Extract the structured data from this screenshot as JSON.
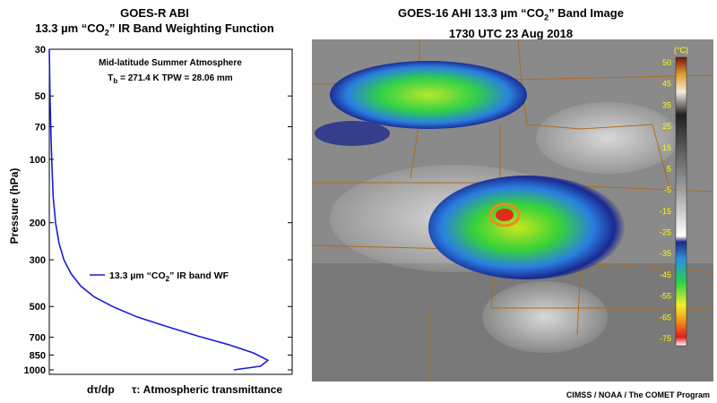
{
  "left_panel": {
    "title_line1": "GOES-R ABI",
    "title_line2_pre": "13.3 µm “CO",
    "title_line2_sub": "2",
    "title_line2_post": "” IR Band Weighting Function",
    "annotation_line1": "Mid-latitude Summer Atmosphere",
    "annotation_tb_label": "T",
    "annotation_tb_sub": "b",
    "annotation_tb_rest": " = 271.4 K   TPW = 28.06 mm",
    "legend_pre": "13.3 µm “CO",
    "legend_sub": "2",
    "legend_post": "” IR band WF",
    "xlabel_left": "dτ/dp",
    "xlabel_right": "τ: Atmospheric transmittance"
  },
  "right_panel": {
    "title_line1_pre": "GOES-16 AHI 13.3 µm “CO",
    "title_line1_sub": "2",
    "title_line1_post": "” Band Image",
    "title_line2": "1730 UTC  23 Aug 2018",
    "colorbar_unit": "(°C)",
    "colorbar_ticks": [
      "50",
      "45",
      "35",
      "25",
      "15",
      "5",
      "-5",
      "-15",
      "-25",
      "-35",
      "-45",
      "-55",
      "-65",
      "-75"
    ],
    "credit": "CIMSS / NOAA / The COMET Program"
  },
  "chart_data": {
    "type": "line",
    "title": "GOES-R ABI 13.3 µm “CO2” IR Band Weighting Function",
    "xlabel": "dτ/dp",
    "ylabel": "Pressure (hPa)",
    "yscale": "log",
    "yinverted": true,
    "ylim": [
      30,
      1050
    ],
    "y_ticks": [
      30,
      50,
      70,
      100,
      200,
      300,
      500,
      700,
      850,
      1000
    ],
    "xlim": [
      0,
      1
    ],
    "legend_position": "center",
    "series": [
      {
        "name": "13.3 µm “CO2” IR band WF",
        "color": "#1a1adb",
        "x": [
          0.0,
          0.003,
          0.006,
          0.01,
          0.016,
          0.026,
          0.04,
          0.06,
          0.09,
          0.13,
          0.185,
          0.26,
          0.36,
          0.48,
          0.61,
          0.74,
          0.84,
          0.9,
          0.87,
          0.76
        ],
        "y": [
          30,
          50,
          70,
          100,
          150,
          200,
          250,
          300,
          350,
          400,
          450,
          500,
          560,
          620,
          690,
          760,
          830,
          900,
          960,
          1000
        ]
      }
    ]
  }
}
